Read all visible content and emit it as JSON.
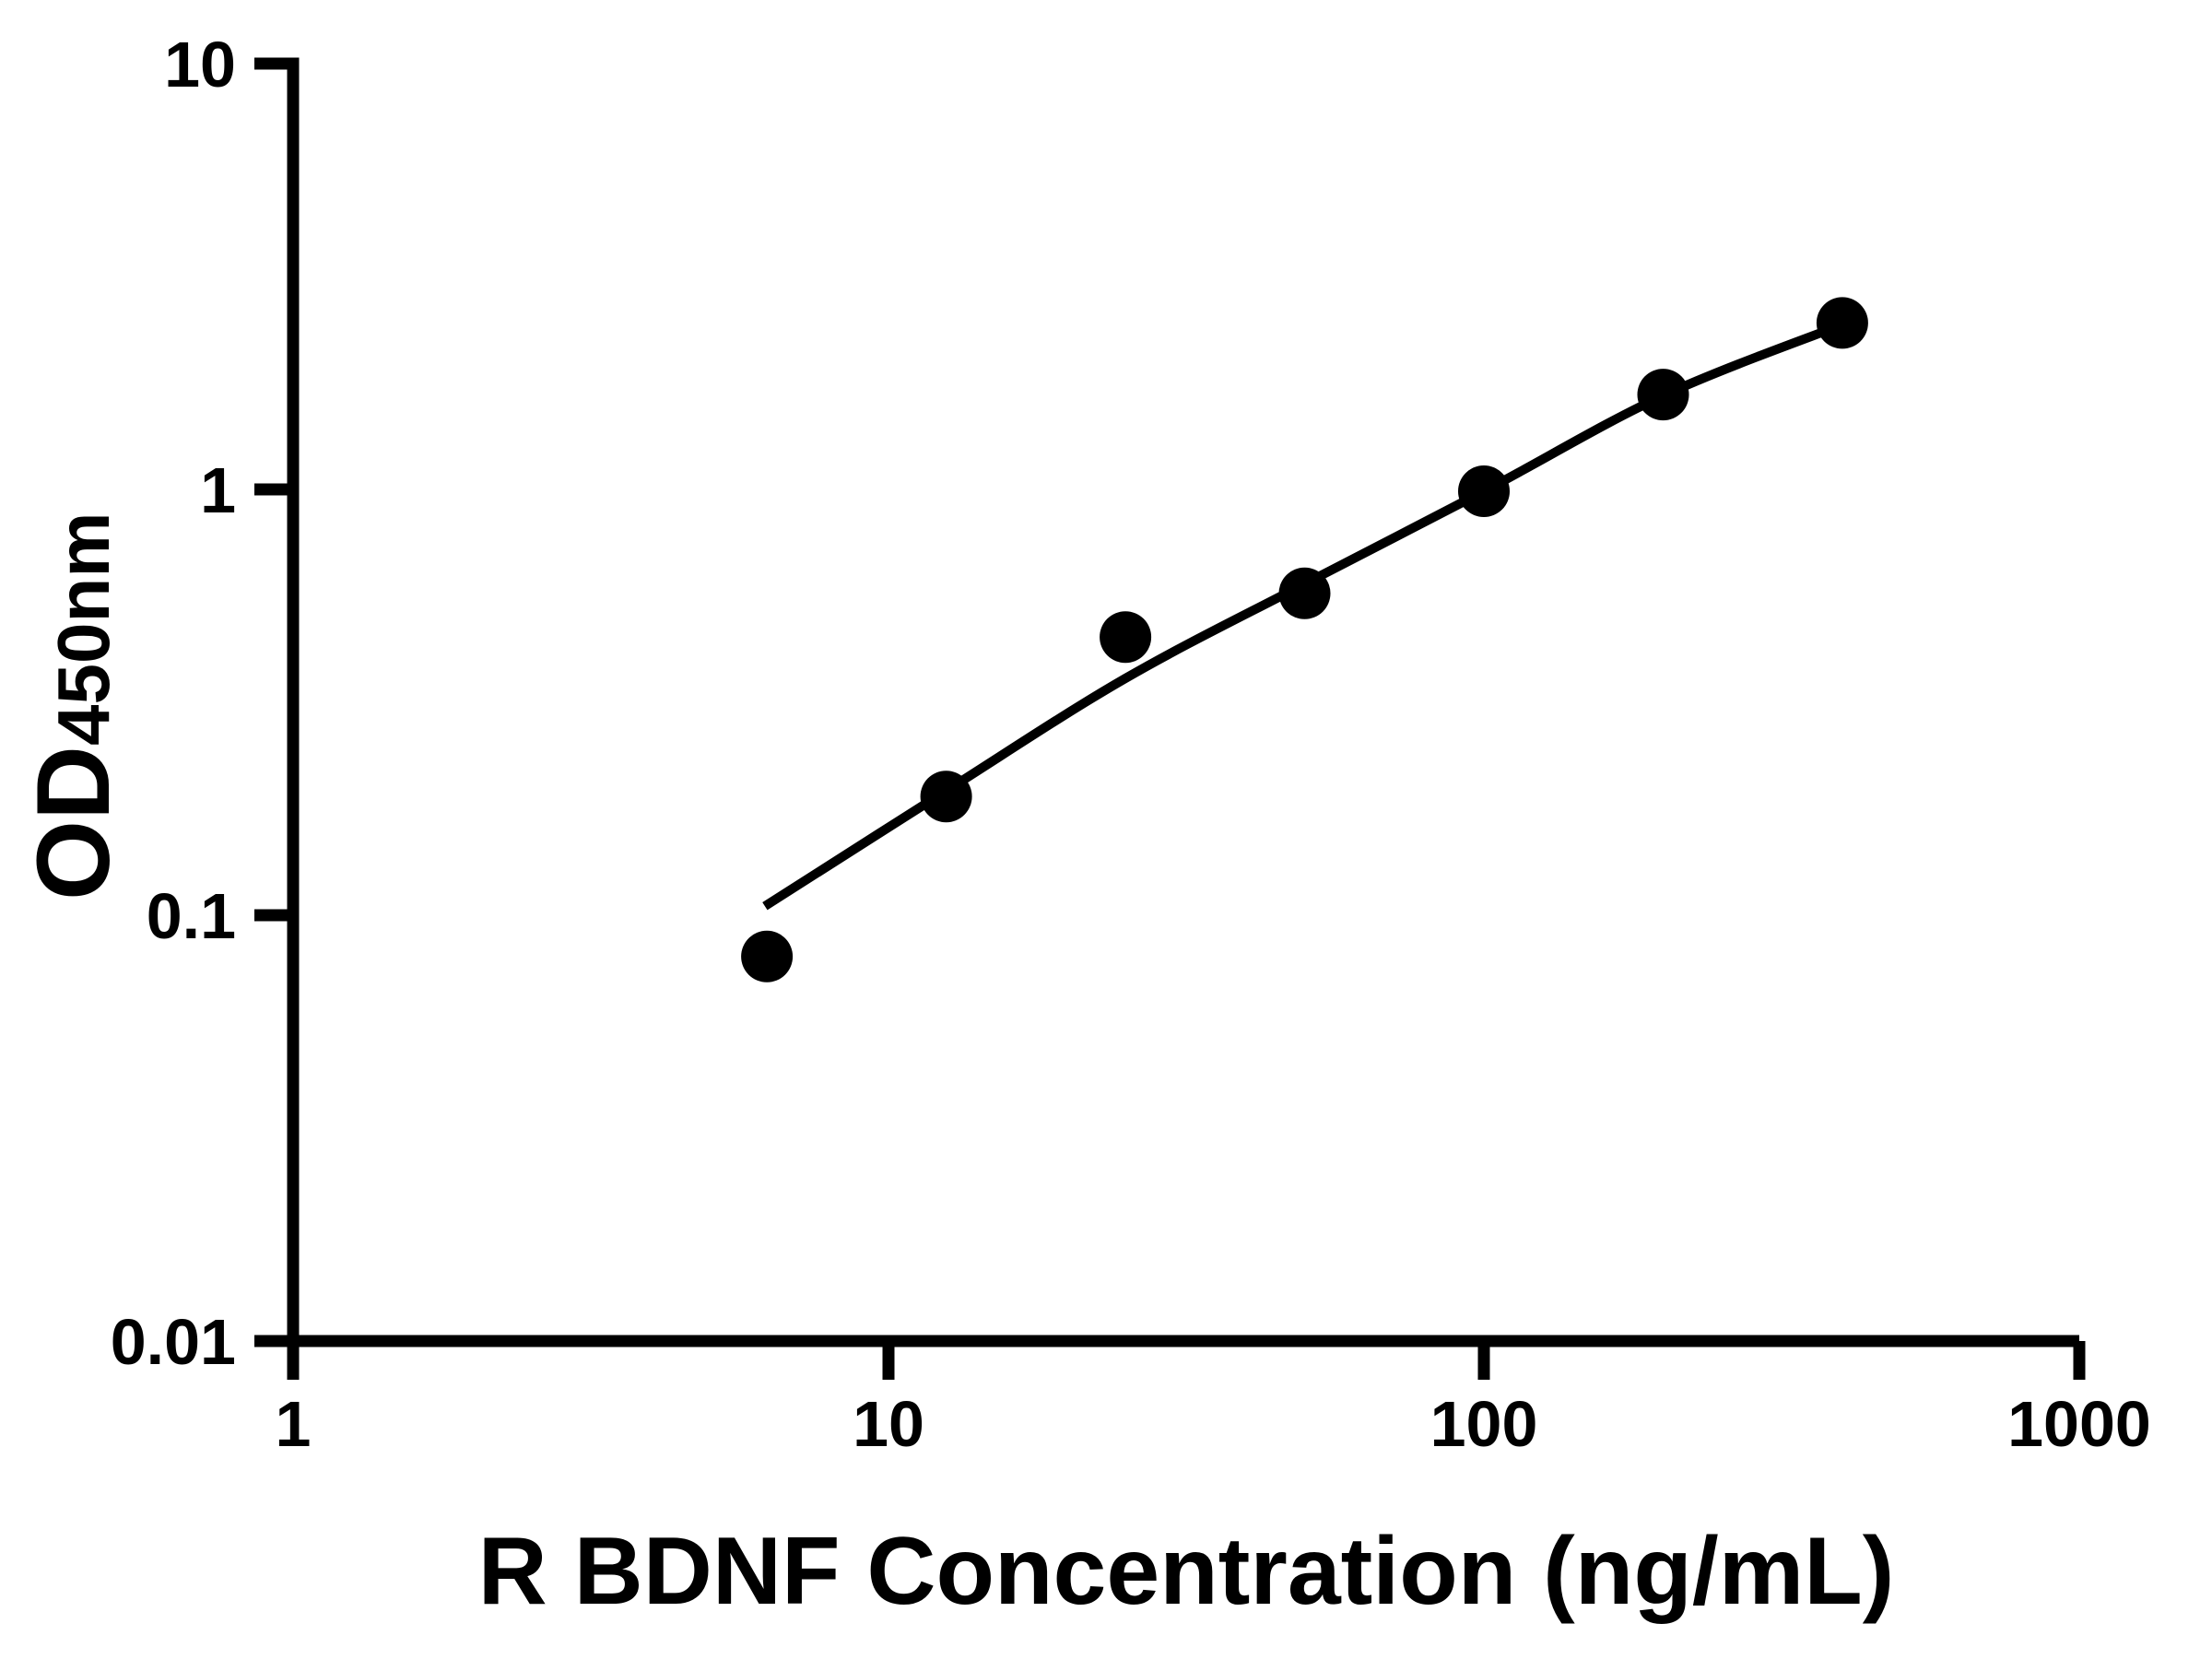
{
  "figure": {
    "kind": "elisa-standard-curve",
    "background_color": "#ffffff",
    "ink_color": "#000000"
  },
  "chart_data": {
    "type": "scatter",
    "title": "",
    "xlabel": "R BDNF Concentration (ng/mL)",
    "ylabel": "OD",
    "ylabel_subscript": "450nm",
    "x_scale": "log10",
    "y_scale": "log10",
    "xlim": [
      1,
      1000
    ],
    "ylim": [
      0.01,
      10
    ],
    "x_ticks": [
      {
        "value": 1,
        "label": "1"
      },
      {
        "value": 10,
        "label": "10"
      },
      {
        "value": 100,
        "label": "100"
      },
      {
        "value": 1000,
        "label": "1000"
      }
    ],
    "y_ticks": [
      {
        "value": 0.01,
        "label": "0.01"
      },
      {
        "value": 0.1,
        "label": "0.1"
      },
      {
        "value": 1,
        "label": "1"
      },
      {
        "value": 10,
        "label": "10"
      }
    ],
    "grid": false,
    "legend": null,
    "series": [
      {
        "name": "standard-points",
        "type": "scatter",
        "marker": "filled-circle",
        "color": "#000000",
        "x": [
          6.25,
          12.5,
          25,
          50,
          100,
          200,
          400
        ],
        "y": [
          0.08,
          0.19,
          0.45,
          0.57,
          0.99,
          1.67,
          2.46
        ]
      },
      {
        "name": "fit-curve",
        "type": "line",
        "color": "#000000",
        "x": [
          6.2,
          12.5,
          25,
          50,
          100,
          200,
          407
        ],
        "y": [
          0.105,
          0.196,
          0.36,
          0.6,
          0.99,
          1.66,
          2.46
        ]
      }
    ]
  }
}
